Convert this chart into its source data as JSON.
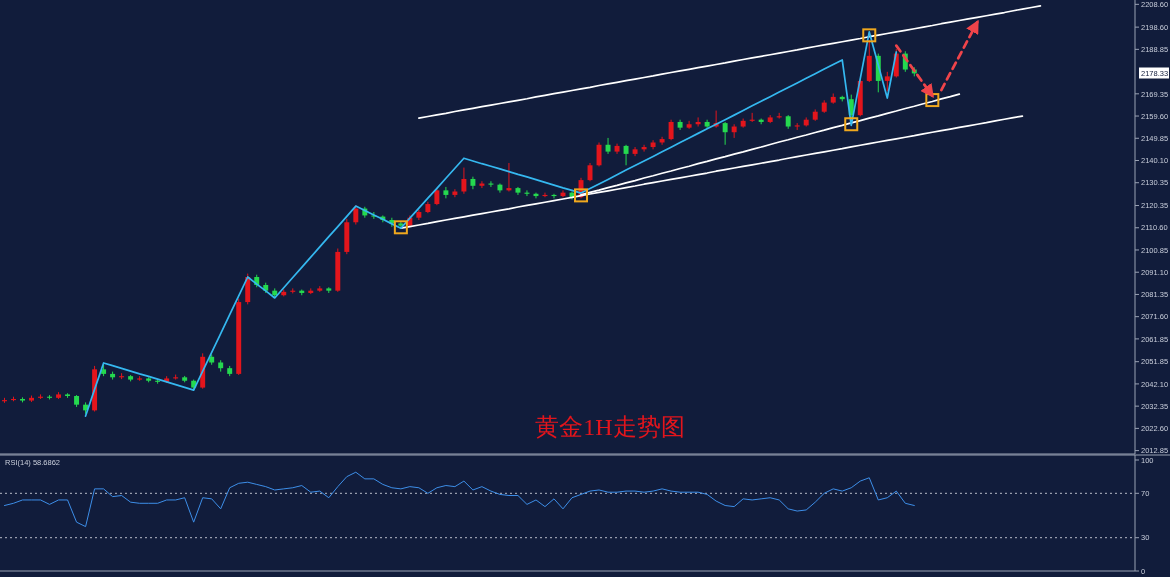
{
  "chart_data": [
    {
      "type": "candlestick",
      "title": "黄金1H走势图",
      "tick_labels": "y",
      "ylim": [
        2011.8,
        2210.5
      ],
      "categories": [
        null,
        null,
        null,
        null,
        null,
        null,
        null,
        null,
        null,
        null,
        null,
        null,
        null,
        null,
        null,
        null,
        null,
        null,
        null,
        null,
        null,
        null,
        null,
        null,
        null,
        null,
        null,
        null,
        null,
        null,
        null,
        null,
        null,
        null,
        null,
        null,
        null,
        null,
        null,
        null,
        null,
        null,
        null,
        null,
        null,
        null,
        null,
        null,
        null,
        null,
        null,
        null,
        null,
        null,
        null,
        null,
        null,
        null,
        null,
        null,
        null,
        null,
        null,
        null,
        null,
        null,
        null,
        null,
        null,
        null,
        null,
        null,
        null,
        null,
        null,
        null,
        null,
        null,
        null,
        null,
        null,
        null,
        null,
        null,
        null,
        null,
        null,
        null,
        null,
        null,
        null,
        null,
        null,
        null,
        null,
        null,
        null,
        null,
        null,
        null,
        null,
        null,
        null,
        null,
        null,
        null,
        null,
        null,
        null,
        null,
        null,
        null,
        null,
        null,
        null,
        null,
        null,
        null,
        null,
        null,
        null,
        null,
        null,
        null,
        null,
        null
      ],
      "yticks": [
        {
          "value": 2208.6,
          "label": "2208.60"
        },
        {
          "value": 2198.6,
          "label": "2198.60"
        },
        {
          "value": 2188.85,
          "label": "2188.85"
        },
        {
          "value": 2169.35,
          "label": "2169.35"
        },
        {
          "value": 2159.6,
          "label": "2159.60"
        },
        {
          "value": 2149.85,
          "label": "2149.85"
        },
        {
          "value": 2140.1,
          "label": "2140.10"
        },
        {
          "value": 2130.35,
          "label": "2130.35"
        },
        {
          "value": 2120.35,
          "label": "2120.35"
        },
        {
          "value": 2110.6,
          "label": "2110.60"
        },
        {
          "value": 2100.85,
          "label": "2100.85"
        },
        {
          "value": 2091.1,
          "label": "2091.10"
        },
        {
          "value": 2081.35,
          "label": "2081.35"
        },
        {
          "value": 2071.6,
          "label": "2071.60"
        },
        {
          "value": 2061.85,
          "label": "2061.85"
        },
        {
          "value": 2051.85,
          "label": "2051.85"
        },
        {
          "value": 2042.1,
          "label": "2042.10"
        },
        {
          "value": 2032.35,
          "label": "2032.35"
        },
        {
          "value": 2022.6,
          "label": "2022.60"
        },
        {
          "value": 2012.85,
          "label": "2012.85"
        }
      ],
      "annotations": [
        "2178.33"
      ],
      "ohlc": [
        [
          2034.5,
          2036.0,
          2033.8,
          2035.0
        ],
        [
          2035.0,
          2036.5,
          2034.5,
          2035.5
        ],
        [
          2035.5,
          2036.2,
          2034.0,
          2034.8
        ],
        [
          2034.8,
          2037.0,
          2034.2,
          2036.0
        ],
        [
          2036.0,
          2037.5,
          2035.5,
          2036.5
        ],
        [
          2036.5,
          2037.2,
          2035.3,
          2036.0
        ],
        [
          2036.0,
          2038.5,
          2035.5,
          2037.5
        ],
        [
          2037.5,
          2038.0,
          2036.0,
          2036.8
        ],
        [
          2036.8,
          2037.2,
          2032.0,
          2033.0
        ],
        [
          2033.0,
          2034.0,
          2029.0,
          2030.5
        ],
        [
          2030.5,
          2050.0,
          2030.0,
          2048.5
        ],
        [
          2048.5,
          2050.5,
          2045.5,
          2046.5
        ],
        [
          2046.5,
          2047.5,
          2044.0,
          2045.0
        ],
        [
          2045.0,
          2046.8,
          2044.2,
          2045.5
        ],
        [
          2045.5,
          2046.0,
          2043.2,
          2044.0
        ],
        [
          2044.0,
          2045.5,
          2043.5,
          2044.5
        ],
        [
          2044.5,
          2045.0,
          2042.8,
          2043.5
        ],
        [
          2043.5,
          2044.2,
          2042.2,
          2043.0
        ],
        [
          2043.0,
          2045.5,
          2042.5,
          2044.5
        ],
        [
          2044.5,
          2046.2,
          2044.0,
          2045.0
        ],
        [
          2045.0,
          2045.6,
          2042.8,
          2043.5
        ],
        [
          2043.5,
          2044.0,
          2039.5,
          2040.5
        ],
        [
          2040.5,
          2055.5,
          2040.0,
          2054.0
        ],
        [
          2054.0,
          2055.0,
          2050.5,
          2051.5
        ],
        [
          2051.5,
          2052.5,
          2047.5,
          2049.0
        ],
        [
          2049.0,
          2050.0,
          2045.5,
          2046.5
        ],
        [
          2046.5,
          2079.5,
          2046.0,
          2078.0
        ],
        [
          2078.0,
          2090.5,
          2077.0,
          2089.0
        ],
        [
          2089.0,
          2090.0,
          2084.5,
          2085.5
        ],
        [
          2085.5,
          2086.5,
          2082.0,
          2083.0
        ],
        [
          2083.0,
          2084.0,
          2080.0,
          2081.0
        ],
        [
          2081.0,
          2083.5,
          2080.5,
          2082.5
        ],
        [
          2082.5,
          2084.0,
          2081.8,
          2083.0
        ],
        [
          2083.0,
          2083.5,
          2081.0,
          2082.0
        ],
        [
          2082.0,
          2084.0,
          2081.5,
          2083.0
        ],
        [
          2083.0,
          2085.0,
          2082.5,
          2084.0
        ],
        [
          2084.0,
          2084.5,
          2082.0,
          2083.0
        ],
        [
          2083.0,
          2101.5,
          2082.5,
          2100.0
        ],
        [
          2100.0,
          2114.5,
          2099.0,
          2113.0
        ],
        [
          2113.0,
          2120.5,
          2112.0,
          2119.0
        ],
        [
          2119.0,
          2119.8,
          2115.0,
          2116.0
        ],
        [
          2116.0,
          2117.5,
          2114.5,
          2115.5
        ],
        [
          2115.5,
          2116.0,
          2113.0,
          2114.0
        ],
        [
          2114.0,
          2115.0,
          2111.0,
          2112.5
        ],
        [
          2112.5,
          2113.5,
          2110.0,
          2111.5
        ],
        [
          2111.5,
          2116.0,
          2111.0,
          2115.0
        ],
        [
          2115.0,
          2118.5,
          2114.0,
          2117.5
        ],
        [
          2117.5,
          2122.0,
          2117.0,
          2121.0
        ],
        [
          2121.0,
          2128.0,
          2120.5,
          2127.0
        ],
        [
          2127.0,
          2128.5,
          2123.5,
          2125.0
        ],
        [
          2125.0,
          2127.5,
          2124.0,
          2126.5
        ],
        [
          2126.5,
          2137.0,
          2125.5,
          2132.0
        ],
        [
          2132.0,
          2133.0,
          2127.5,
          2129.0
        ],
        [
          2129.0,
          2131.0,
          2128.0,
          2130.0
        ],
        [
          2130.0,
          2131.0,
          2128.5,
          2129.5
        ],
        [
          2129.5,
          2130.0,
          2126.0,
          2127.0
        ],
        [
          2127.0,
          2139.0,
          2126.5,
          2128.0
        ],
        [
          2128.0,
          2128.5,
          2125.0,
          2126.0
        ],
        [
          2126.0,
          2127.0,
          2124.5,
          2125.5
        ],
        [
          2125.5,
          2126.0,
          2123.5,
          2124.5
        ],
        [
          2124.5,
          2126.0,
          2124.0,
          2125.0
        ],
        [
          2125.0,
          2125.5,
          2123.5,
          2124.5
        ],
        [
          2124.5,
          2127.0,
          2124.0,
          2126.0
        ],
        [
          2126.0,
          2126.5,
          2123.0,
          2124.0
        ],
        [
          2124.0,
          2132.5,
          2123.5,
          2131.5
        ],
        [
          2131.5,
          2139.0,
          2131.0,
          2138.0
        ],
        [
          2138.0,
          2148.0,
          2137.5,
          2147.0
        ],
        [
          2147.0,
          2150.0,
          2143.0,
          2144.0
        ],
        [
          2144.0,
          2147.5,
          2143.0,
          2146.5
        ],
        [
          2146.5,
          2147.0,
          2138.0,
          2143.0
        ],
        [
          2143.0,
          2146.0,
          2142.0,
          2145.0
        ],
        [
          2145.0,
          2147.0,
          2144.0,
          2146.0
        ],
        [
          2146.0,
          2149.0,
          2145.0,
          2148.0
        ],
        [
          2148.0,
          2150.5,
          2147.0,
          2149.5
        ],
        [
          2149.5,
          2158.0,
          2149.0,
          2157.0
        ],
        [
          2157.0,
          2158.0,
          2153.5,
          2154.5
        ],
        [
          2154.5,
          2157.5,
          2154.0,
          2156.0
        ],
        [
          2156.0,
          2159.0,
          2155.0,
          2157.0
        ],
        [
          2157.0,
          2158.0,
          2154.0,
          2155.0
        ],
        [
          2155.0,
          2162.0,
          2154.5,
          2156.5
        ],
        [
          2156.5,
          2157.0,
          2147.0,
          2152.5
        ],
        [
          2152.5,
          2156.0,
          2150.0,
          2155.0
        ],
        [
          2155.0,
          2158.5,
          2154.5,
          2157.5
        ],
        [
          2157.5,
          2161.0,
          2157.0,
          2158.0
        ],
        [
          2158.0,
          2158.5,
          2156.0,
          2157.0
        ],
        [
          2157.0,
          2160.0,
          2156.5,
          2159.0
        ],
        [
          2159.0,
          2161.0,
          2158.5,
          2159.5
        ],
        [
          2159.5,
          2160.0,
          2154.0,
          2155.0
        ],
        [
          2155.0,
          2156.5,
          2153.5,
          2155.5
        ],
        [
          2155.5,
          2159.0,
          2155.0,
          2158.0
        ],
        [
          2158.0,
          2162.5,
          2157.5,
          2161.5
        ],
        [
          2161.5,
          2166.5,
          2161.0,
          2165.5
        ],
        [
          2165.5,
          2169.5,
          2165.0,
          2168.0
        ],
        [
          2168.0,
          2168.5,
          2166.0,
          2167.0
        ],
        [
          2167.0,
          2169.0,
          2158.0,
          2160.0
        ],
        [
          2160.0,
          2176.0,
          2159.5,
          2175.0
        ],
        [
          2175.0,
          2193.0,
          2174.5,
          2186.0
        ],
        [
          2186.0,
          2187.0,
          2170.0,
          2175.0
        ],
        [
          2175.0,
          2179.0,
          2170.5,
          2177.0
        ],
        [
          2177.0,
          2189.0,
          2176.5,
          2187.0
        ],
        [
          2187.0,
          2188.0,
          2179.0,
          2180.0
        ],
        [
          2180.0,
          2181.0,
          2177.0,
          2178.3
        ],
        null,
        null,
        null,
        null,
        null,
        null,
        null,
        null,
        null,
        null,
        null,
        null,
        null,
        null,
        null,
        null,
        null,
        null,
        null,
        null,
        null,
        null,
        null,
        null
      ],
      "colors": [
        "#e3151c",
        "#e3151c",
        "#25d94f",
        "#e3151c",
        "#e3151c",
        "#25d94f",
        "#e3151c",
        "#25d94f",
        "#25d94f",
        "#25d94f",
        "#e3151c",
        "#25d94f",
        "#25d94f",
        "#e3151c",
        "#25d94f",
        "#e3151c",
        "#25d94f",
        "#25d94f",
        "#e3151c",
        "#e3151c",
        "#25d94f",
        "#25d94f",
        "#e3151c",
        "#25d94f",
        "#25d94f",
        "#25d94f",
        "#e3151c",
        "#e3151c",
        "#25d94f",
        "#25d94f",
        "#25d94f",
        "#e3151c",
        "#e3151c",
        "#25d94f",
        "#e3151c",
        "#e3151c",
        "#25d94f",
        "#e3151c",
        "#e3151c",
        "#e3151c",
        "#25d94f",
        "#25d94f",
        "#25d94f",
        "#25d94f",
        "#25d94f",
        "#e3151c",
        "#e3151c",
        "#e3151c",
        "#e3151c",
        "#25d94f",
        "#e3151c",
        "#e3151c",
        "#25d94f",
        "#e3151c",
        "#25d94f",
        "#25d94f",
        "#e3151c",
        "#25d94f",
        "#25d94f",
        "#25d94f",
        "#e3151c",
        "#25d94f",
        "#e3151c",
        "#25d94f",
        "#e3151c",
        "#e3151c",
        "#e3151c",
        "#25d94f",
        "#e3151c",
        "#25d94f",
        "#e3151c",
        "#e3151c",
        "#e3151c",
        "#e3151c",
        "#e3151c",
        "#25d94f",
        "#e3151c",
        "#e3151c",
        "#25d94f",
        "#e3151c",
        "#25d94f",
        "#e3151c",
        "#e3151c",
        "#e3151c",
        "#25d94f",
        "#e3151c",
        "#e3151c",
        "#25d94f",
        "#e3151c",
        "#e3151c",
        "#e3151c",
        "#e3151c",
        "#e3151c",
        "#25d94f",
        "#25d94f",
        "#e3151c",
        "#e3151c",
        "#25d94f",
        "#e3151c",
        "#e3151c",
        "#25d94f",
        "#25d94f",
        null,
        null,
        null,
        null,
        null,
        null,
        null,
        null,
        null,
        null,
        null,
        null,
        null,
        null,
        null,
        null,
        null,
        null,
        null,
        null,
        null,
        null,
        null,
        null
      ],
      "series": [
        {
          "type": "line",
          "color": "#ffffff",
          "values": [
            null,
            null,
            null,
            null,
            null,
            null,
            null,
            null,
            null,
            null,
            null,
            null,
            null,
            null,
            null,
            null,
            null,
            null,
            null,
            null,
            null,
            null,
            null,
            null,
            null,
            null,
            null,
            null,
            null,
            null,
            null,
            null,
            null,
            null,
            null,
            null,
            null,
            null,
            null,
            null,
            null,
            null,
            null,
            null,
            null,
            null,
            2158.7,
            2159.4,
            2160.1,
            2160.8,
            2161.6,
            2162.3,
            2163.0,
            2163.7,
            2164.4,
            2165.1,
            2165.8,
            2166.5,
            2167.2,
            2168.0,
            2168.7,
            2169.4,
            2170.1,
            2170.8,
            2171.5,
            2172.2,
            2173.0,
            2173.7,
            2174.4,
            2175.1,
            2175.8,
            2176.5,
            2177.2,
            2178.0,
            2178.7,
            2179.4,
            2180.1,
            2180.8,
            2181.5,
            2182.2,
            2182.9,
            2183.7,
            2184.4,
            2185.1,
            2185.8,
            2186.5,
            2187.2,
            2187.9,
            2188.6,
            2189.4,
            2190.1,
            2190.8,
            2191.5,
            2192.2,
            2192.9,
            2193.6,
            2194.4,
            2195.1,
            2195.8,
            2196.5,
            2197.2,
            2197.9,
            2198.6,
            2199.3,
            2200.1,
            2200.8,
            2201.5,
            2202.2,
            2202.9,
            2203.6,
            2204.3,
            2205.0,
            2205.8,
            2206.5,
            2207.2,
            2207.9,
            null,
            null,
            null,
            null,
            null,
            null,
            null,
            null,
            null,
            null
          ]
        },
        {
          "type": "line",
          "color": "#ffffff",
          "values": [
            null,
            null,
            null,
            null,
            null,
            null,
            null,
            null,
            null,
            null,
            null,
            null,
            null,
            null,
            null,
            null,
            null,
            null,
            null,
            null,
            null,
            null,
            null,
            null,
            null,
            null,
            null,
            null,
            null,
            null,
            null,
            null,
            null,
            null,
            null,
            null,
            null,
            null,
            null,
            null,
            null,
            null,
            null,
            null,
            2110.4,
            2111.1,
            2111.8,
            2112.5,
            2113.3,
            2114.0,
            2114.7,
            2115.4,
            2116.1,
            2116.8,
            2117.5,
            2118.2,
            2118.9,
            2119.7,
            2120.4,
            2121.1,
            2121.8,
            2122.5,
            2123.2,
            2123.9,
            2124.7,
            2125.4,
            2126.1,
            2126.8,
            2127.5,
            2128.2,
            2128.9,
            2129.7,
            2130.4,
            2131.1,
            2131.8,
            2132.5,
            2133.2,
            2133.9,
            2134.6,
            2135.4,
            2136.1,
            2136.8,
            2137.5,
            2138.2,
            2138.9,
            2139.6,
            2140.3,
            2141.1,
            2141.8,
            2142.5,
            2143.2,
            2143.9,
            2144.6,
            2145.3,
            2146.1,
            2146.8,
            2147.5,
            2148.2,
            2148.9,
            2149.6,
            2150.3,
            2151.0,
            2151.8,
            2152.5,
            2153.2,
            2153.9,
            2154.6,
            2155.3,
            2156.0,
            2156.7,
            2157.5,
            2158.2,
            2158.9,
            2159.6,
            null,
            null,
            null,
            null,
            null,
            null,
            null,
            null,
            null,
            null,
            null,
            null
          ]
        },
        {
          "type": "line",
          "color": "#ffffff",
          "values": [
            null,
            null,
            null,
            null,
            null,
            null,
            null,
            null,
            null,
            null,
            null,
            null,
            null,
            null,
            null,
            null,
            null,
            null,
            null,
            null,
            null,
            null,
            null,
            null,
            null,
            null,
            null,
            null,
            null,
            null,
            null,
            null,
            null,
            null,
            null,
            null,
            null,
            null,
            null,
            null,
            null,
            null,
            null,
            null,
            null,
            null,
            null,
            null,
            null,
            null,
            null,
            null,
            null,
            null,
            null,
            null,
            null,
            null,
            null,
            null,
            null,
            null,
            null,
            null,
            2125.0,
            2126.1,
            2127.1,
            2128.2,
            2129.2,
            2130.3,
            2131.3,
            2132.4,
            2133.4,
            2134.5,
            2135.5,
            2136.6,
            2137.6,
            2138.7,
            2139.7,
            2140.8,
            2141.8,
            2142.9,
            2143.9,
            2145.0,
            2146.0,
            2147.1,
            2148.2,
            2149.2,
            2150.3,
            2151.3,
            2152.4,
            2153.4,
            2154.5,
            2155.5,
            2156.6,
            2157.6,
            2158.7,
            2159.7,
            2160.8,
            2161.8,
            2162.9,
            2163.9,
            2165.0,
            2166.0,
            2167.1,
            2168.1,
            2169.2,
            null,
            null,
            null,
            null,
            null,
            null,
            null,
            null,
            null,
            null,
            null,
            null,
            null,
            null,
            null,
            null,
            null,
            null,
            null
          ]
        },
        {
          "type": "line",
          "color": "#35b8f0",
          "values": [
            null,
            null,
            null,
            null,
            null,
            null,
            null,
            null,
            null,
            2028.0,
            2039.7,
            2051.3,
            2050.1,
            2048.9,
            2047.7,
            2046.5,
            2045.4,
            2044.2,
            2043.0,
            2041.8,
            2040.6,
            2039.4,
            2047.7,
            2055.9,
            2064.2,
            2072.5,
            2080.7,
            2089.0,
            2085.9,
            2082.9,
            2079.8,
            2084.3,
            2088.8,
            2093.2,
            2097.7,
            2102.2,
            2106.7,
            2111.1,
            2115.6,
            2120.1,
            2118.2,
            2116.2,
            2114.3,
            2112.3,
            2110.4,
            2114.8,
            2119.2,
            2123.6,
            2127.9,
            2132.3,
            2136.7,
            2141.1,
            2139.9,
            2138.7,
            2137.6,
            2136.4,
            2135.2,
            2134.0,
            2132.9,
            2131.7,
            2130.5,
            2129.3,
            2128.1,
            2127.0,
            2125.8,
            2127.8,
            2129.8,
            2131.8,
            2133.9,
            2135.9,
            2137.9,
            2139.9,
            2141.9,
            2143.9,
            2145.9,
            2148.0,
            2150.0,
            2152.0,
            2154.0,
            2156.0,
            2158.0,
            2160.0,
            2162.0,
            2164.1,
            2166.1,
            2168.1,
            2170.1,
            2172.1,
            2174.1,
            2176.2,
            2178.2,
            2180.2,
            2182.2,
            2184.2,
            2155.5,
            2176.0,
            2196.5,
            2182.0,
            2167.5,
            2187.7,
            null,
            null,
            null,
            null,
            null,
            null,
            null,
            null,
            null,
            null,
            null,
            null,
            null,
            null,
            null,
            null,
            null,
            null,
            null,
            null,
            null,
            null,
            null,
            null,
            null,
            null
          ]
        },
        {
          "type": "scatter",
          "marker": "square",
          "color": "#f0a81e",
          "values": [
            null,
            null,
            null,
            null,
            null,
            null,
            null,
            null,
            null,
            null,
            null,
            null,
            null,
            null,
            null,
            null,
            null,
            null,
            null,
            null,
            null,
            null,
            null,
            null,
            null,
            null,
            null,
            null,
            null,
            null,
            null,
            null,
            null,
            null,
            null,
            null,
            null,
            null,
            null,
            null,
            null,
            null,
            null,
            null,
            2110.8,
            null,
            null,
            null,
            null,
            null,
            null,
            null,
            null,
            null,
            null,
            null,
            null,
            null,
            null,
            null,
            null,
            null,
            null,
            null,
            2124.8,
            null,
            null,
            null,
            null,
            null,
            null,
            null,
            null,
            null,
            null,
            null,
            null,
            null,
            null,
            null,
            null,
            null,
            null,
            null,
            null,
            null,
            null,
            null,
            null,
            null,
            null,
            null,
            null,
            null,
            2156.0,
            null,
            2195.0,
            null,
            null,
            null,
            null,
            null,
            null,
            2166.6,
            null,
            null,
            null,
            null,
            null,
            null,
            null,
            null,
            null,
            null,
            null,
            null,
            null,
            null,
            null,
            null,
            null,
            null,
            null,
            null,
            null,
            null
          ]
        },
        {
          "type": "line",
          "line_style": "dashed",
          "color": "#f0444a",
          "values": [
            null,
            null,
            null,
            null,
            null,
            null,
            null,
            null,
            null,
            null,
            null,
            null,
            null,
            null,
            null,
            null,
            null,
            null,
            null,
            null,
            null,
            null,
            null,
            null,
            null,
            null,
            null,
            null,
            null,
            null,
            null,
            null,
            null,
            null,
            null,
            null,
            null,
            null,
            null,
            null,
            null,
            null,
            null,
            null,
            null,
            null,
            null,
            null,
            null,
            null,
            null,
            null,
            null,
            null,
            null,
            null,
            null,
            null,
            null,
            null,
            null,
            null,
            null,
            null,
            null,
            null,
            null,
            null,
            null,
            null,
            null,
            null,
            null,
            null,
            null,
            null,
            null,
            null,
            null,
            null,
            null,
            null,
            null,
            null,
            null,
            null,
            null,
            null,
            null,
            null,
            null,
            null,
            null,
            null,
            null,
            null,
            null,
            null,
            null,
            2190.5,
            2185.0,
            2179.5,
            2174.0,
            2168.5,
            null,
            null,
            null,
            null,
            null,
            null,
            null,
            null,
            null,
            null,
            null,
            null,
            null,
            null,
            null,
            null,
            null,
            null,
            null,
            null,
            null,
            null
          ]
        },
        {
          "type": "line",
          "line_style": "dashed",
          "color": "#f0444a",
          "values": [
            null,
            null,
            null,
            null,
            null,
            null,
            null,
            null,
            null,
            null,
            null,
            null,
            null,
            null,
            null,
            null,
            null,
            null,
            null,
            null,
            null,
            null,
            null,
            null,
            null,
            null,
            null,
            null,
            null,
            null,
            null,
            null,
            null,
            null,
            null,
            null,
            null,
            null,
            null,
            null,
            null,
            null,
            null,
            null,
            null,
            null,
            null,
            null,
            null,
            null,
            null,
            null,
            null,
            null,
            null,
            null,
            null,
            null,
            null,
            null,
            null,
            null,
            null,
            null,
            null,
            null,
            null,
            null,
            null,
            null,
            null,
            null,
            null,
            null,
            null,
            null,
            null,
            null,
            null,
            null,
            null,
            null,
            null,
            null,
            null,
            null,
            null,
            null,
            null,
            null,
            null,
            null,
            null,
            null,
            null,
            null,
            null,
            null,
            null,
            null,
            null,
            null,
            null,
            null,
            2171.0,
            2178.5,
            2185.9,
            2193.4,
            2200.8,
            null,
            null,
            null,
            null,
            null,
            null,
            null,
            null,
            null,
            null,
            null,
            null,
            null,
            null,
            null,
            null,
            null
          ]
        }
      ]
    },
    {
      "type": "line",
      "title": "RSI(14) 58.6862",
      "tick_labels": "y",
      "ylim": [
        0,
        100
      ],
      "yticks": [
        100,
        70,
        30,
        0
      ],
      "categories": [
        null,
        null,
        null,
        null,
        null,
        null,
        null,
        null,
        null,
        null,
        null,
        null,
        null,
        null,
        null,
        null,
        null,
        null,
        null,
        null,
        null,
        null,
        null,
        null,
        null,
        null,
        null,
        null,
        null,
        null,
        null,
        null,
        null,
        null,
        null,
        null,
        null,
        null,
        null,
        null,
        null,
        null,
        null,
        null,
        null,
        null,
        null,
        null,
        null,
        null,
        null,
        null,
        null,
        null,
        null,
        null,
        null,
        null,
        null,
        null,
        null,
        null,
        null,
        null,
        null,
        null,
        null,
        null,
        null,
        null,
        null,
        null,
        null,
        null,
        null,
        null,
        null,
        null,
        null,
        null,
        null,
        null,
        null,
        null,
        null,
        null,
        null,
        null,
        null,
        null,
        null,
        null,
        null,
        null,
        null,
        null,
        null,
        null,
        null,
        null,
        null,
        null,
        null,
        null,
        null,
        null,
        null,
        null,
        null,
        null,
        null,
        null,
        null,
        null,
        null,
        null,
        null,
        null,
        null,
        null,
        null,
        null,
        null,
        null,
        null,
        null
      ],
      "ref_lines": [
        {
          "axis": "y",
          "value": 70,
          "color": "#b8bcc8",
          "line_style": "dotted"
        },
        {
          "axis": "y",
          "value": 30,
          "color": "#b8bcc8",
          "line_style": "dotted"
        }
      ],
      "series": [
        {
          "color": "#3d8ee8",
          "values": [
            59,
            61,
            64,
            64,
            64,
            60,
            64,
            64,
            44,
            40,
            74,
            74,
            67,
            68,
            62,
            61,
            61,
            61,
            64,
            64,
            66,
            44,
            66,
            65,
            56,
            75,
            79,
            80,
            78,
            76,
            73,
            74,
            75,
            77,
            71,
            72,
            66,
            76,
            85,
            89,
            83,
            83,
            78,
            75,
            74,
            76,
            75,
            70,
            75,
            77,
            76,
            81,
            73,
            76,
            72,
            69,
            68,
            68,
            60,
            64,
            58,
            65,
            56,
            66,
            69,
            72,
            73,
            71,
            71,
            72,
            72,
            71,
            72,
            74,
            72,
            71,
            71,
            71,
            69,
            63,
            59,
            58,
            65,
            64,
            65,
            66,
            64,
            56,
            54,
            55,
            62,
            70,
            74,
            72,
            75,
            81,
            84,
            64,
            66,
            72,
            61,
            59,
            null,
            null,
            null,
            null,
            null,
            null,
            null,
            null,
            null,
            null,
            null,
            null,
            null,
            null,
            null,
            null,
            null,
            null,
            null,
            null,
            null,
            null,
            null,
            null
          ]
        }
      ]
    }
  ]
}
